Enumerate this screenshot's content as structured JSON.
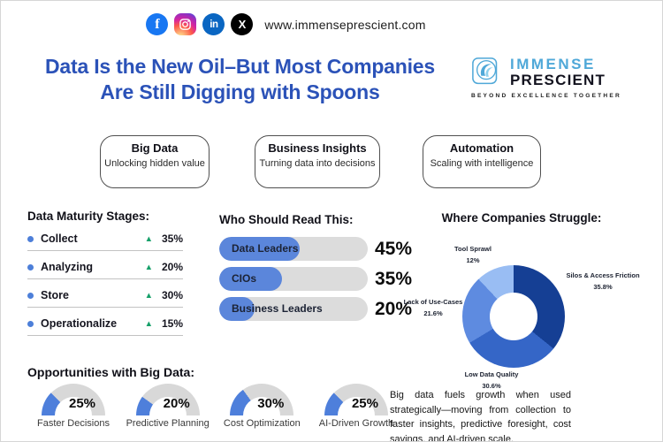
{
  "theme": {
    "title_blue": "#2b52b8",
    "light_blue": "#4fa8d8",
    "bar_blue": "#5b86db",
    "track_gray": "#dcdcdc",
    "gauge_blue": "#4e7fdb",
    "green": "#17a06a",
    "bullet_blue": "#4d7fd9",
    "donut_colors": [
      "#153f94",
      "#3566c7",
      "#5e8be0",
      "#99bdf3"
    ]
  },
  "topbar": {
    "url": "www.immenseprescient.com",
    "icons": [
      "facebook-icon",
      "instagram-icon",
      "linkedin-icon",
      "x-icon"
    ],
    "facebook_glyph": "f",
    "linkedin_glyph": "in",
    "x_glyph": "X"
  },
  "header": {
    "title_line1": "Data Is the New Oil–But Most Companies",
    "title_line2": "Are Still Digging with Spoons"
  },
  "logo": {
    "name_top": "IMMENSE",
    "name_bottom": "PRESCIENT",
    "tagline": "BEYOND EXCELLENCE TOGETHER"
  },
  "pills": [
    {
      "title": "Big Data",
      "subtitle": "Unlocking hidden value"
    },
    {
      "title": "Business Insights",
      "subtitle": "Turning data into decisions"
    },
    {
      "title": "Automation",
      "subtitle": "Scaling with intelligence"
    }
  ],
  "maturity": {
    "heading": "Data Maturity Stages:",
    "trend_glyph": "▲",
    "items": [
      {
        "label": "Collect",
        "value": "35%"
      },
      {
        "label": "Analyzing",
        "value": "20%"
      },
      {
        "label": "Store",
        "value": "30%"
      },
      {
        "label": "Operationalize",
        "value": "15%"
      }
    ]
  },
  "readers": {
    "heading": "Who Should Read This:",
    "items": [
      {
        "label": "Data Leaders",
        "value": "45%"
      },
      {
        "label": "CIOs",
        "value": "35%"
      },
      {
        "label": "Business Leaders",
        "value": "20%"
      }
    ]
  },
  "struggle": {
    "heading": "Where Companies Struggle:",
    "labels": [
      {
        "name": "Tool Sprawl",
        "pct": "12%"
      },
      {
        "name": "Silos & Access Friction",
        "pct": "35.8%"
      },
      {
        "name": "Lack of Use-Cases",
        "pct": "21.6%"
      },
      {
        "name": "Low Data Quality",
        "pct": "30.6%"
      }
    ]
  },
  "opportunities": {
    "heading": "Opportunities with Big Data:",
    "items": [
      {
        "label": "Faster Decisions",
        "value": "25%"
      },
      {
        "label": "Predictive Planning",
        "value": "20%"
      },
      {
        "label": "Cost Optimization",
        "value": "30%"
      },
      {
        "label": "AI-Driven Growth",
        "value": "25%"
      }
    ]
  },
  "summary": "Big data fuels growth when used strategically—moving from collection to faster insights, predictive foresight, cost savings, and AI-driven scale.",
  "chart_data": [
    {
      "type": "pie",
      "variant": "donut",
      "title": "Where Companies Struggle:",
      "labels": [
        "Silos & Access Friction",
        "Low Data Quality",
        "Lack of Use-Cases",
        "Tool Sprawl"
      ],
      "values": [
        35.8,
        30.6,
        21.6,
        12
      ],
      "colors": [
        "#153f94",
        "#3566c7",
        "#5e8be0",
        "#99bdf3"
      ],
      "start_angle_deg": 0,
      "direction": "clockwise",
      "legend_position": "outside-labels"
    },
    {
      "type": "bar",
      "orientation": "horizontal",
      "title": "Who Should Read This:",
      "categories": [
        "Data Leaders",
        "CIOs",
        "Business Leaders"
      ],
      "values": [
        45,
        35,
        20
      ],
      "xlim": [
        0,
        100
      ],
      "bar_color": "#5b86db",
      "track_color": "#dcdcdc"
    },
    {
      "type": "pie",
      "variant": "semicircle-gauge",
      "title": "Opportunities with Big Data:",
      "categories": [
        "Faster Decisions",
        "Predictive Planning",
        "Cost Optimization",
        "AI-Driven Growth"
      ],
      "values": [
        25,
        20,
        30,
        25
      ],
      "max": 100,
      "fill_color": "#4e7fdb",
      "track_color": "#d8d8d8"
    },
    {
      "type": "table",
      "title": "Data Maturity Stages:",
      "categories": [
        "Collect",
        "Analyzing",
        "Store",
        "Operationalize"
      ],
      "values": [
        35,
        20,
        30,
        15
      ],
      "trend": "up"
    }
  ]
}
